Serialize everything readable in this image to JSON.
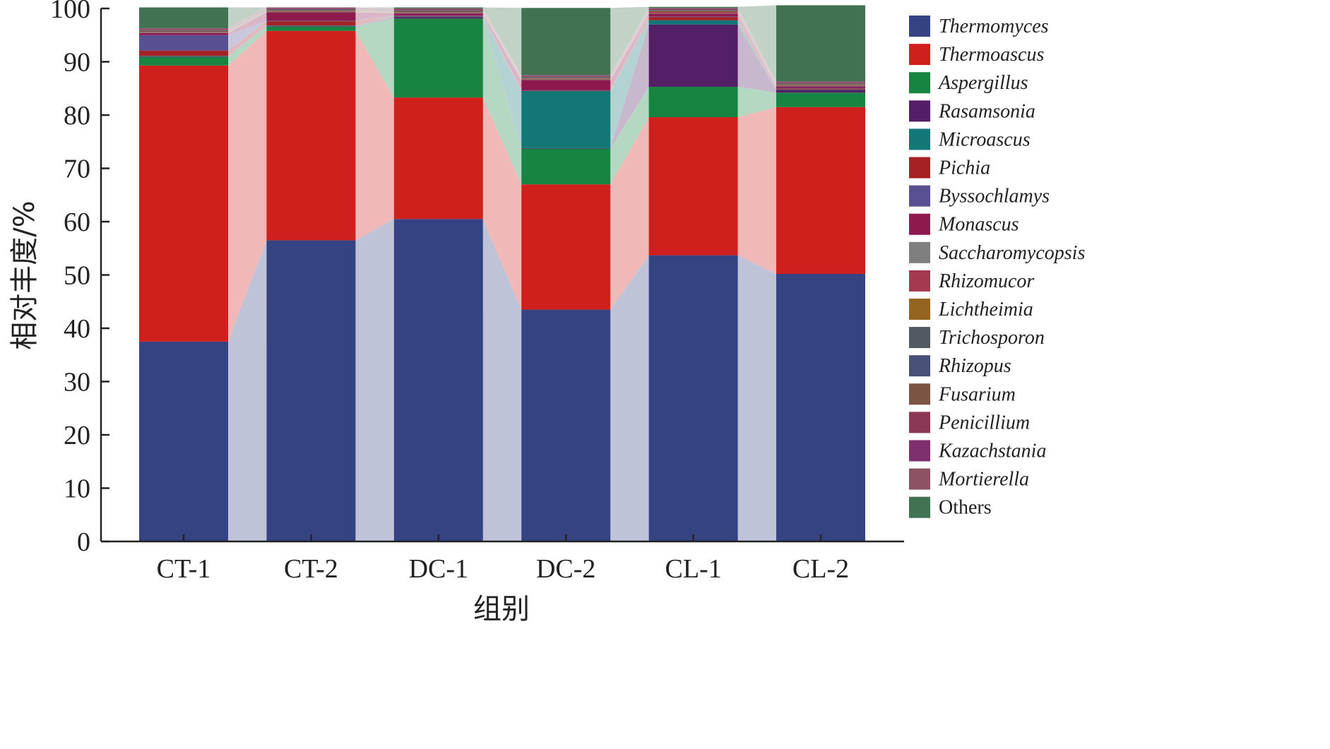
{
  "chart_data": {
    "type": "bar",
    "stacked": true,
    "xlabel": "组别",
    "ylabel": "相对丰度/%",
    "ylim": [
      0,
      100
    ],
    "yticks": [
      "0",
      "10",
      "20",
      "30",
      "40",
      "50",
      "60",
      "70",
      "80",
      "90",
      "100"
    ],
    "categories": [
      "CT-1",
      "CT-2",
      "DC-1",
      "DC-2",
      "CL-1",
      "CL-2"
    ],
    "legend_position": "right",
    "series": [
      {
        "name": "Thermomyces",
        "italic": true,
        "color": "#364383",
        "values": [
          37.5,
          56.5,
          60.5,
          43.5,
          53.7,
          50.2
        ]
      },
      {
        "name": "Thermoascus",
        "italic": true,
        "color": "#d0201d",
        "values": [
          51.8,
          39.3,
          22.8,
          23.5,
          25.9,
          31.3
        ]
      },
      {
        "name": "Aspergillus",
        "italic": true,
        "color": "#178442",
        "values": [
          1.6,
          0.8,
          14.8,
          6.7,
          5.7,
          2.7
        ]
      },
      {
        "name": "Rasamsonia",
        "italic": true,
        "color": "#532067",
        "values": [
          0.1,
          0.1,
          0.3,
          0.1,
          11.7,
          0.5
        ]
      },
      {
        "name": "Microascus",
        "italic": true,
        "color": "#137677",
        "values": [
          0.1,
          0.1,
          0.1,
          10.7,
          0.8,
          0.1
        ]
      },
      {
        "name": "Pichia",
        "italic": true,
        "color": "#a52126",
        "values": [
          1.0,
          0.8,
          0.1,
          0.1,
          0.6,
          0.2
        ]
      },
      {
        "name": "Byssochlamys",
        "italic": true,
        "color": "#575092",
        "values": [
          2.9,
          0.1,
          0.1,
          0.1,
          0.1,
          0.1
        ]
      },
      {
        "name": "Monascus",
        "italic": true,
        "color": "#8e1a4d",
        "values": [
          0.4,
          1.6,
          0.4,
          1.9,
          0.5,
          0.3
        ]
      },
      {
        "name": "Saccharomycopsis",
        "italic": true,
        "color": "#7f7f7f",
        "values": [
          0.1,
          0.1,
          0.1,
          0.1,
          0.1,
          0.1
        ]
      },
      {
        "name": "Rhizomucor",
        "italic": true,
        "color": "#a4394f",
        "values": [
          0.1,
          0.1,
          0.1,
          0.1,
          0.3,
          0.1
        ]
      },
      {
        "name": "Lichtheimia",
        "italic": true,
        "color": "#946421",
        "values": [
          0.1,
          0.1,
          0.1,
          0.1,
          0.1,
          0.1
        ]
      },
      {
        "name": "Trichosporon",
        "italic": true,
        "color": "#525960",
        "values": [
          0.1,
          0.1,
          0.1,
          0.1,
          0.1,
          0.1
        ]
      },
      {
        "name": "Rhizopus",
        "italic": true,
        "color": "#4a5178",
        "values": [
          0.1,
          0.1,
          0.1,
          0.1,
          0.1,
          0.1
        ]
      },
      {
        "name": "Fusarium",
        "italic": true,
        "color": "#7c5443",
        "values": [
          0.1,
          0.1,
          0.1,
          0.1,
          0.1,
          0.1
        ]
      },
      {
        "name": "Penicillium",
        "italic": true,
        "color": "#8b3857",
        "values": [
          0.1,
          0.1,
          0.1,
          0.1,
          0.1,
          0.1
        ]
      },
      {
        "name": "Kazachstania",
        "italic": true,
        "color": "#7d2f6e",
        "values": [
          0.1,
          0.1,
          0.1,
          0.1,
          0.1,
          0.1
        ]
      },
      {
        "name": "Mortierella",
        "italic": true,
        "color": "#8c5363",
        "values": [
          0.1,
          0.1,
          0.1,
          0.1,
          0.1,
          0.1
        ]
      },
      {
        "name": "Others",
        "italic": false,
        "color": "#417251",
        "values": [
          3.9,
          0.0,
          0.2,
          12.6,
          0.2,
          14.3
        ]
      }
    ]
  }
}
